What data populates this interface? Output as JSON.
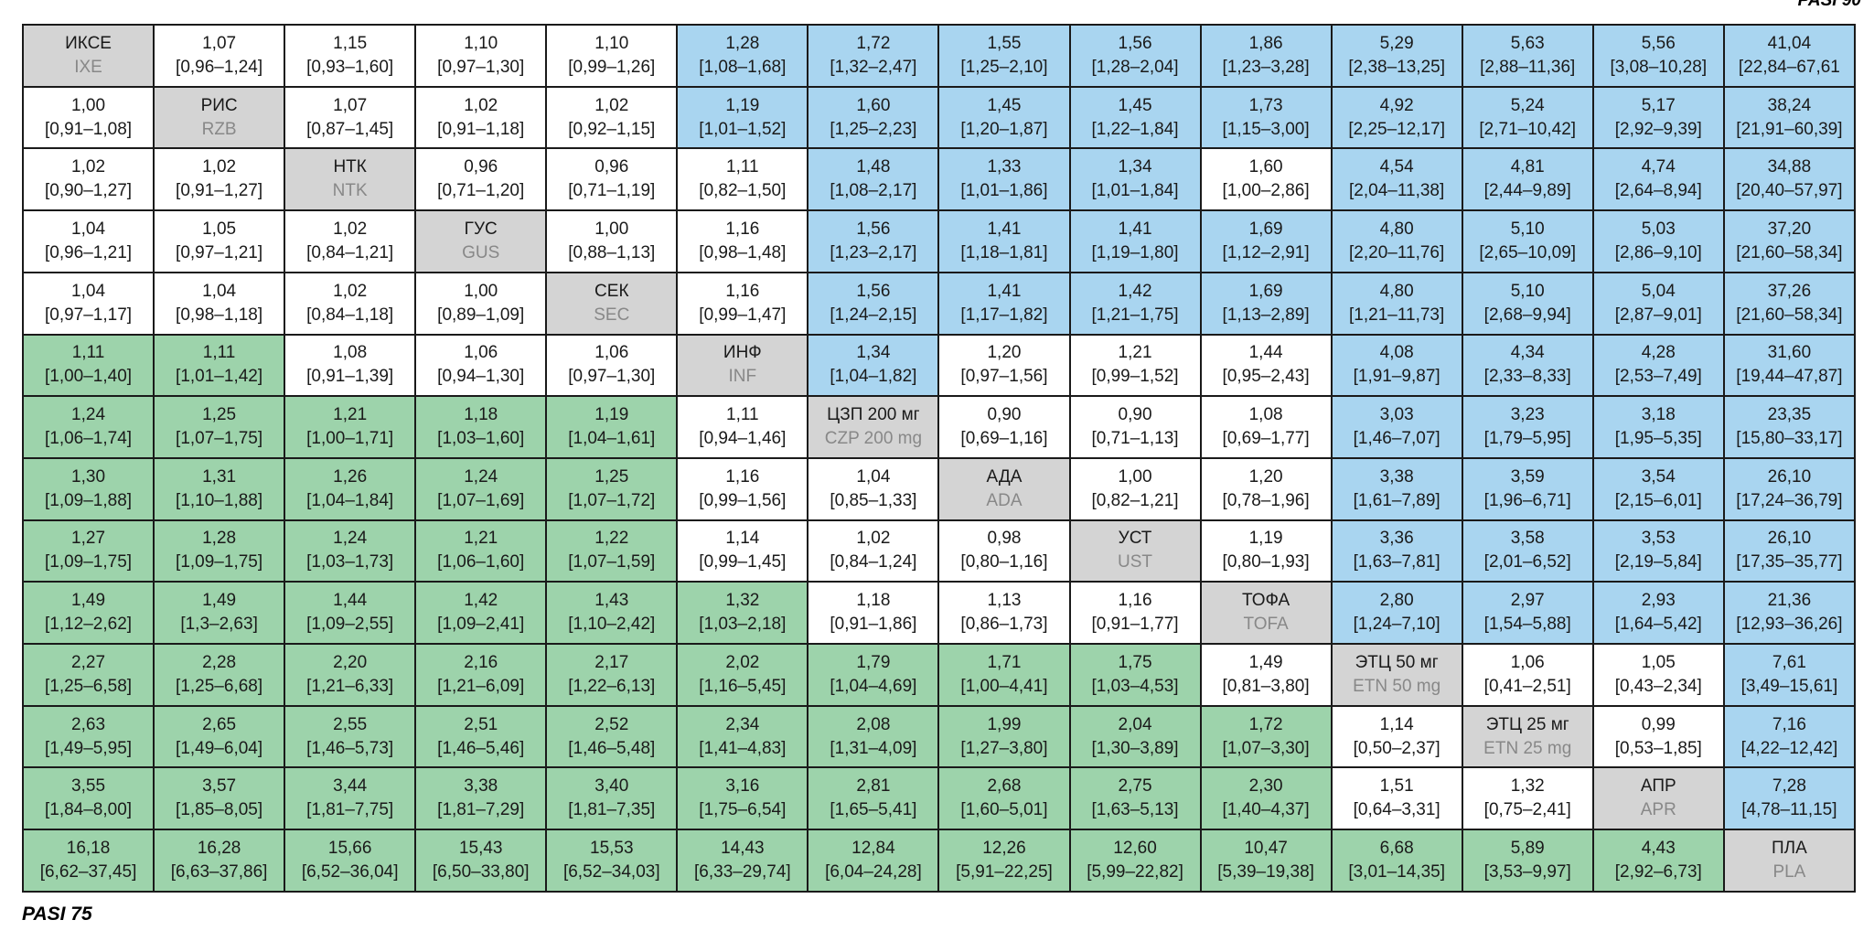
{
  "top_label": "PASI 90",
  "bottom_label": "PASI 75",
  "colors": {
    "white": "#ffffff",
    "blue": "#a9d5f0",
    "green": "#9dd3ab",
    "diag": "#d4d4d4"
  },
  "rows": [
    [
      {
        "t": "d",
        "ru": "ИКСЕ",
        "en": "IXE"
      },
      {
        "t": "w",
        "v": "1,07",
        "ci": "[0,96–1,24]"
      },
      {
        "t": "w",
        "v": "1,15",
        "ci": "[0,93–1,60]"
      },
      {
        "t": "w",
        "v": "1,10",
        "ci": "[0,97–1,30]"
      },
      {
        "t": "w",
        "v": "1,10",
        "ci": "[0,99–1,26]"
      },
      {
        "t": "b",
        "v": "1,28",
        "ci": "[1,08–1,68]"
      },
      {
        "t": "b",
        "v": "1,72",
        "ci": "[1,32–2,47]"
      },
      {
        "t": "b",
        "v": "1,55",
        "ci": "[1,25–2,10]"
      },
      {
        "t": "b",
        "v": "1,56",
        "ci": "[1,28–2,04]"
      },
      {
        "t": "b",
        "v": "1,86",
        "ci": "[1,23–3,28]"
      },
      {
        "t": "b",
        "v": "5,29",
        "ci": "[2,38–13,25]"
      },
      {
        "t": "b",
        "v": "5,63",
        "ci": "[2,88–11,36]"
      },
      {
        "t": "b",
        "v": "5,56",
        "ci": "[3,08–10,28]"
      },
      {
        "t": "b",
        "v": "41,04",
        "ci": "[22,84–67,61"
      }
    ],
    [
      {
        "t": "w",
        "v": "1,00",
        "ci": "[0,91–1,08]"
      },
      {
        "t": "d",
        "ru": "РИС",
        "en": "RZB"
      },
      {
        "t": "w",
        "v": "1,07",
        "ci": "[0,87–1,45]"
      },
      {
        "t": "w",
        "v": "1,02",
        "ci": "[0,91–1,18]"
      },
      {
        "t": "w",
        "v": "1,02",
        "ci": "[0,92–1,15]"
      },
      {
        "t": "b",
        "v": "1,19",
        "ci": "[1,01–1,52]"
      },
      {
        "t": "b",
        "v": "1,60",
        "ci": "[1,25–2,23]"
      },
      {
        "t": "b",
        "v": "1,45",
        "ci": "[1,20–1,87]"
      },
      {
        "t": "b",
        "v": "1,45",
        "ci": "[1,22–1,84]"
      },
      {
        "t": "b",
        "v": "1,73",
        "ci": "[1,15–3,00]"
      },
      {
        "t": "b",
        "v": "4,92",
        "ci": "[2,25–12,17]"
      },
      {
        "t": "b",
        "v": "5,24",
        "ci": "[2,71–10,42]"
      },
      {
        "t": "b",
        "v": "5,17",
        "ci": "[2,92–9,39]"
      },
      {
        "t": "b",
        "v": "38,24",
        "ci": "[21,91–60,39]"
      }
    ],
    [
      {
        "t": "w",
        "v": "1,02",
        "ci": "[0,90–1,27]"
      },
      {
        "t": "w",
        "v": "1,02",
        "ci": "[0,91–1,27]"
      },
      {
        "t": "d",
        "ru": "НТК",
        "en": "NTK"
      },
      {
        "t": "w",
        "v": "0,96",
        "ci": "[0,71–1,20]"
      },
      {
        "t": "w",
        "v": "0,96",
        "ci": "[0,71–1,19]"
      },
      {
        "t": "w",
        "v": "1,11",
        "ci": "[0,82–1,50]"
      },
      {
        "t": "b",
        "v": "1,48",
        "ci": "[1,08–2,17]"
      },
      {
        "t": "b",
        "v": "1,33",
        "ci": "[1,01–1,86]"
      },
      {
        "t": "b",
        "v": "1,34",
        "ci": "[1,01–1,84]"
      },
      {
        "t": "w",
        "v": "1,60",
        "ci": "[1,00–2,86]"
      },
      {
        "t": "b",
        "v": "4,54",
        "ci": "[2,04–11,38]"
      },
      {
        "t": "b",
        "v": "4,81",
        "ci": "[2,44–9,89]"
      },
      {
        "t": "b",
        "v": "4,74",
        "ci": "[2,64–8,94]"
      },
      {
        "t": "b",
        "v": "34,88",
        "ci": "[20,40–57,97]"
      }
    ],
    [
      {
        "t": "w",
        "v": "1,04",
        "ci": "[0,96–1,21]"
      },
      {
        "t": "w",
        "v": "1,05",
        "ci": "[0,97–1,21]"
      },
      {
        "t": "w",
        "v": "1,02",
        "ci": "[0,84–1,21]"
      },
      {
        "t": "d",
        "ru": "ГУС",
        "en": "GUS"
      },
      {
        "t": "w",
        "v": "1,00",
        "ci": "[0,88–1,13]"
      },
      {
        "t": "w",
        "v": "1,16",
        "ci": "[0,98–1,48]"
      },
      {
        "t": "b",
        "v": "1,56",
        "ci": "[1,23–2,17]"
      },
      {
        "t": "b",
        "v": "1,41",
        "ci": "[1,18–1,81]"
      },
      {
        "t": "b",
        "v": "1,41",
        "ci": "[1,19–1,80]"
      },
      {
        "t": "b",
        "v": "1,69",
        "ci": "[1,12–2,91]"
      },
      {
        "t": "b",
        "v": "4,80",
        "ci": "[2,20–11,76]"
      },
      {
        "t": "b",
        "v": "5,10",
        "ci": "[2,65–10,09]"
      },
      {
        "t": "b",
        "v": "5,03",
        "ci": "[2,86–9,10]"
      },
      {
        "t": "b",
        "v": "37,20",
        "ci": "[21,60–58,34]"
      }
    ],
    [
      {
        "t": "w",
        "v": "1,04",
        "ci": "[0,97–1,17]"
      },
      {
        "t": "w",
        "v": "1,04",
        "ci": "[0,98–1,18]"
      },
      {
        "t": "w",
        "v": "1,02",
        "ci": "[0,84–1,18]"
      },
      {
        "t": "w",
        "v": "1,00",
        "ci": "[0,89–1,09]"
      },
      {
        "t": "d",
        "ru": "СЕК",
        "en": "SEC"
      },
      {
        "t": "w",
        "v": "1,16",
        "ci": "[0,99–1,47]"
      },
      {
        "t": "b",
        "v": "1,56",
        "ci": "[1,24–2,15]"
      },
      {
        "t": "b",
        "v": "1,41",
        "ci": "[1,17–1,82]"
      },
      {
        "t": "b",
        "v": "1,42",
        "ci": "[1,21–1,75]"
      },
      {
        "t": "b",
        "v": "1,69",
        "ci": "[1,13–2,89]"
      },
      {
        "t": "b",
        "v": "4,80",
        "ci": "[1,21–11,73]"
      },
      {
        "t": "b",
        "v": "5,10",
        "ci": "[2,68–9,94]"
      },
      {
        "t": "b",
        "v": "5,04",
        "ci": "[2,87–9,01]"
      },
      {
        "t": "b",
        "v": "37,26",
        "ci": "[21,60–58,34]"
      }
    ],
    [
      {
        "t": "g",
        "v": "1,11",
        "ci": "[1,00–1,40]"
      },
      {
        "t": "g",
        "v": "1,11",
        "ci": "[1,01–1,42]"
      },
      {
        "t": "w",
        "v": "1,08",
        "ci": "[0,91–1,39]"
      },
      {
        "t": "w",
        "v": "1,06",
        "ci": "[0,94–1,30]"
      },
      {
        "t": "w",
        "v": "1,06",
        "ci": "[0,97–1,30]"
      },
      {
        "t": "d",
        "ru": "ИНФ",
        "en": "INF"
      },
      {
        "t": "b",
        "v": "1,34",
        "ci": "[1,04–1,82]"
      },
      {
        "t": "w",
        "v": "1,20",
        "ci": "[0,97–1,56]"
      },
      {
        "t": "w",
        "v": "1,21",
        "ci": "[0,99–1,52]"
      },
      {
        "t": "w",
        "v": "1,44",
        "ci": "[0,95–2,43]"
      },
      {
        "t": "b",
        "v": "4,08",
        "ci": "[1,91–9,87]"
      },
      {
        "t": "b",
        "v": "4,34",
        "ci": "[2,33–8,33]"
      },
      {
        "t": "b",
        "v": "4,28",
        "ci": "[2,53–7,49]"
      },
      {
        "t": "b",
        "v": "31,60",
        "ci": "[19,44–47,87]"
      }
    ],
    [
      {
        "t": "g",
        "v": "1,24",
        "ci": "[1,06–1,74]"
      },
      {
        "t": "g",
        "v": "1,25",
        "ci": "[1,07–1,75]"
      },
      {
        "t": "g",
        "v": "1,21",
        "ci": "[1,00–1,71]"
      },
      {
        "t": "g",
        "v": "1,18",
        "ci": "[1,03–1,60]"
      },
      {
        "t": "g",
        "v": "1,19",
        "ci": "[1,04–1,61]"
      },
      {
        "t": "w",
        "v": "1,11",
        "ci": "[0,94–1,46]"
      },
      {
        "t": "d",
        "ru": "ЦЗП 200 мг",
        "en": "CZP 200 mg"
      },
      {
        "t": "w",
        "v": "0,90",
        "ci": "[0,69–1,16]"
      },
      {
        "t": "w",
        "v": "0,90",
        "ci": "[0,71–1,13]"
      },
      {
        "t": "w",
        "v": "1,08",
        "ci": "[0,69–1,77]"
      },
      {
        "t": "b",
        "v": "3,03",
        "ci": "[1,46–7,07]"
      },
      {
        "t": "b",
        "v": "3,23",
        "ci": "[1,79–5,95]"
      },
      {
        "t": "b",
        "v": "3,18",
        "ci": "[1,95–5,35]"
      },
      {
        "t": "b",
        "v": "23,35",
        "ci": "[15,80–33,17]"
      }
    ],
    [
      {
        "t": "g",
        "v": "1,30",
        "ci": "[1,09–1,88]"
      },
      {
        "t": "g",
        "v": "1,31",
        "ci": "[1,10–1,88]"
      },
      {
        "t": "g",
        "v": "1,26",
        "ci": "[1,04–1,84]"
      },
      {
        "t": "g",
        "v": "1,24",
        "ci": "[1,07–1,69]"
      },
      {
        "t": "g",
        "v": "1,25",
        "ci": "[1,07–1,72]"
      },
      {
        "t": "w",
        "v": "1,16",
        "ci": "[0,99–1,56]"
      },
      {
        "t": "w",
        "v": "1,04",
        "ci": "[0,85–1,33]"
      },
      {
        "t": "d",
        "ru": "АДА",
        "en": "ADA"
      },
      {
        "t": "w",
        "v": "1,00",
        "ci": "[0,82–1,21]"
      },
      {
        "t": "w",
        "v": "1,20",
        "ci": "[0,78–1,96]"
      },
      {
        "t": "b",
        "v": "3,38",
        "ci": "[1,61–7,89]"
      },
      {
        "t": "b",
        "v": "3,59",
        "ci": "[1,96–6,71]"
      },
      {
        "t": "b",
        "v": "3,54",
        "ci": "[2,15–6,01]"
      },
      {
        "t": "b",
        "v": "26,10",
        "ci": "[17,24–36,79]"
      }
    ],
    [
      {
        "t": "g",
        "v": "1,27",
        "ci": "[1,09–1,75]"
      },
      {
        "t": "g",
        "v": "1,28",
        "ci": "[1,09–1,75]"
      },
      {
        "t": "g",
        "v": "1,24",
        "ci": "[1,03–1,73]"
      },
      {
        "t": "g",
        "v": "1,21",
        "ci": "[1,06–1,60]"
      },
      {
        "t": "g",
        "v": "1,22",
        "ci": "[1,07–1,59]"
      },
      {
        "t": "w",
        "v": "1,14",
        "ci": "[0,99–1,45]"
      },
      {
        "t": "w",
        "v": "1,02",
        "ci": "[0,84–1,24]"
      },
      {
        "t": "w",
        "v": "0,98",
        "ci": "[0,80–1,16]"
      },
      {
        "t": "d",
        "ru": "УСТ",
        "en": "UST"
      },
      {
        "t": "w",
        "v": "1,19",
        "ci": "[0,80–1,93]"
      },
      {
        "t": "b",
        "v": "3,36",
        "ci": "[1,63–7,81]"
      },
      {
        "t": "b",
        "v": "3,58",
        "ci": "[2,01–6,52]"
      },
      {
        "t": "b",
        "v": "3,53",
        "ci": "[2,19–5,84]"
      },
      {
        "t": "b",
        "v": "26,10",
        "ci": "[17,35–35,77]"
      }
    ],
    [
      {
        "t": "g",
        "v": "1,49",
        "ci": "[1,12–2,62]"
      },
      {
        "t": "g",
        "v": "1,49",
        "ci": "[1,3–2,63]"
      },
      {
        "t": "g",
        "v": "1,44",
        "ci": "[1,09–2,55]"
      },
      {
        "t": "g",
        "v": "1,42",
        "ci": "[1,09–2,41]"
      },
      {
        "t": "g",
        "v": "1,43",
        "ci": "[1,10–2,42]"
      },
      {
        "t": "g",
        "v": "1,32",
        "ci": "[1,03–2,18]"
      },
      {
        "t": "w",
        "v": "1,18",
        "ci": "[0,91–1,86]"
      },
      {
        "t": "w",
        "v": "1,13",
        "ci": "[0,86–1,73]"
      },
      {
        "t": "w",
        "v": "1,16",
        "ci": "[0,91–1,77]"
      },
      {
        "t": "d",
        "ru": "ТОФА",
        "en": "TOFA"
      },
      {
        "t": "b",
        "v": "2,80",
        "ci": "[1,24–7,10]"
      },
      {
        "t": "b",
        "v": "2,97",
        "ci": "[1,54–5,88]"
      },
      {
        "t": "b",
        "v": "2,93",
        "ci": "[1,64–5,42]"
      },
      {
        "t": "b",
        "v": "21,36",
        "ci": "[12,93–36,26]"
      }
    ],
    [
      {
        "t": "g",
        "v": "2,27",
        "ci": "[1,25–6,58]"
      },
      {
        "t": "g",
        "v": "2,28",
        "ci": "[1,25–6,68]"
      },
      {
        "t": "g",
        "v": "2,20",
        "ci": "[1,21–6,33]"
      },
      {
        "t": "g",
        "v": "2,16",
        "ci": "[1,21–6,09]"
      },
      {
        "t": "g",
        "v": "2,17",
        "ci": "[1,22–6,13]"
      },
      {
        "t": "g",
        "v": "2,02",
        "ci": "[1,16–5,45]"
      },
      {
        "t": "g",
        "v": "1,79",
        "ci": "[1,04–4,69]"
      },
      {
        "t": "g",
        "v": "1,71",
        "ci": "[1,00–4,41]"
      },
      {
        "t": "g",
        "v": "1,75",
        "ci": "[1,03–4,53]"
      },
      {
        "t": "w",
        "v": "1,49",
        "ci": "[0,81–3,80]"
      },
      {
        "t": "d",
        "ru": "ЭТЦ 50 мг",
        "en": "ETN 50 mg"
      },
      {
        "t": "w",
        "v": "1,06",
        "ci": "[0,41–2,51]"
      },
      {
        "t": "w",
        "v": "1,05",
        "ci": "[0,43–2,34]"
      },
      {
        "t": "b",
        "v": "7,61",
        "ci": "[3,49–15,61]"
      }
    ],
    [
      {
        "t": "g",
        "v": "2,63",
        "ci": "[1,49–5,95]"
      },
      {
        "t": "g",
        "v": "2,65",
        "ci": "[1,49–6,04]"
      },
      {
        "t": "g",
        "v": "2,55",
        "ci": "[1,46–5,73]"
      },
      {
        "t": "g",
        "v": "2,51",
        "ci": "[1,46–5,46]"
      },
      {
        "t": "g",
        "v": "2,52",
        "ci": "[1,46–5,48]"
      },
      {
        "t": "g",
        "v": "2,34",
        "ci": "[1,41–4,83]"
      },
      {
        "t": "g",
        "v": "2,08",
        "ci": "[1,31–4,09]"
      },
      {
        "t": "g",
        "v": "1,99",
        "ci": "[1,27–3,80]"
      },
      {
        "t": "g",
        "v": "2,04",
        "ci": "[1,30–3,89]"
      },
      {
        "t": "g",
        "v": "1,72",
        "ci": "[1,07–3,30]"
      },
      {
        "t": "w",
        "v": "1,14",
        "ci": "[0,50–2,37]"
      },
      {
        "t": "d",
        "ru": "ЭТЦ 25 мг",
        "en": "ETN 25 mg"
      },
      {
        "t": "w",
        "v": "0,99",
        "ci": "[0,53–1,85]"
      },
      {
        "t": "b",
        "v": "7,16",
        "ci": "[4,22–12,42]"
      }
    ],
    [
      {
        "t": "g",
        "v": "3,55",
        "ci": "[1,84–8,00]"
      },
      {
        "t": "g",
        "v": "3,57",
        "ci": "[1,85–8,05]"
      },
      {
        "t": "g",
        "v": "3,44",
        "ci": "[1,81–7,75]"
      },
      {
        "t": "g",
        "v": "3,38",
        "ci": "[1,81–7,29]"
      },
      {
        "t": "g",
        "v": "3,40",
        "ci": "[1,81–7,35]"
      },
      {
        "t": "g",
        "v": "3,16",
        "ci": "[1,75–6,54]"
      },
      {
        "t": "g",
        "v": "2,81",
        "ci": "[1,65–5,41]"
      },
      {
        "t": "g",
        "v": "2,68",
        "ci": "[1,60–5,01]"
      },
      {
        "t": "g",
        "v": "2,75",
        "ci": "[1,63–5,13]"
      },
      {
        "t": "g",
        "v": "2,30",
        "ci": "[1,40–4,37]"
      },
      {
        "t": "w",
        "v": "1,51",
        "ci": "[0,64–3,31]"
      },
      {
        "t": "w",
        "v": "1,32",
        "ci": "[0,75–2,41]"
      },
      {
        "t": "d",
        "ru": "АПР",
        "en": "APR"
      },
      {
        "t": "b",
        "v": "7,28",
        "ci": "[4,78–11,15]"
      }
    ],
    [
      {
        "t": "g",
        "v": "16,18",
        "ci": "[6,62–37,45]"
      },
      {
        "t": "g",
        "v": "16,28",
        "ci": "[6,63–37,86]"
      },
      {
        "t": "g",
        "v": "15,66",
        "ci": "[6,52–36,04]"
      },
      {
        "t": "g",
        "v": "15,43",
        "ci": "[6,50–33,80]"
      },
      {
        "t": "g",
        "v": "15,53",
        "ci": "[6,52–34,03]"
      },
      {
        "t": "g",
        "v": "14,43",
        "ci": "[6,33–29,74]"
      },
      {
        "t": "g",
        "v": "12,84",
        "ci": "[6,04–24,28]"
      },
      {
        "t": "g",
        "v": "12,26",
        "ci": "[5,91–22,25]"
      },
      {
        "t": "g",
        "v": "12,60",
        "ci": "[5,99–22,82]"
      },
      {
        "t": "g",
        "v": "10,47",
        "ci": "[5,39–19,38]"
      },
      {
        "t": "g",
        "v": "6,68",
        "ci": "[3,01–14,35]"
      },
      {
        "t": "g",
        "v": "5,89",
        "ci": "[3,53–9,97]"
      },
      {
        "t": "g",
        "v": "4,43",
        "ci": "[2,92–6,73]"
      },
      {
        "t": "d",
        "ru": "ПЛА",
        "en": "PLA"
      }
    ]
  ]
}
